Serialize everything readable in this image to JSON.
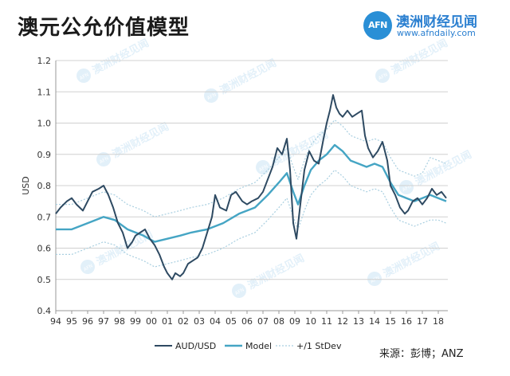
{
  "header": {
    "title": "澳元公允价值模型",
    "brand_logo": "AFN",
    "brand_name": "澳洲财经见闻",
    "brand_url": "www.afndaily.com"
  },
  "source": "来源：彭博；ANZ",
  "watermark": {
    "text": "澳洲财经见闻",
    "logo": "AFN"
  },
  "colors": {
    "aud": "#2e4a62",
    "model": "#45a5c4",
    "stdev": "#a9cfe0",
    "grid": "#d0d0d0",
    "brand": "#2a8fd6"
  },
  "chart_data": {
    "type": "line",
    "title": "澳元公允价值模型",
    "xlabel": "",
    "ylabel": "USD",
    "xlim": [
      1994,
      2018.6
    ],
    "ylim": [
      0.4,
      1.2
    ],
    "yticks": [
      "0.4",
      "0.5",
      "0.6",
      "0.7",
      "0.8",
      "0.9",
      "1.0",
      "1.1",
      "1.2"
    ],
    "xticks": [
      "94",
      "95",
      "96",
      "97",
      "98",
      "99",
      "00",
      "01",
      "02",
      "03",
      "04",
      "05",
      "06",
      "07",
      "08",
      "09",
      "10",
      "11",
      "12",
      "13",
      "14",
      "15",
      "16",
      "17",
      "18"
    ],
    "legend_position": "bottom",
    "series": [
      {
        "name": "AUD/USD",
        "x": [
          1994.0,
          1994.3,
          1994.7,
          1995.0,
          1995.3,
          1995.7,
          1996.0,
          1996.3,
          1996.7,
          1997.0,
          1997.3,
          1997.6,
          1997.9,
          1998.2,
          1998.5,
          1998.8,
          1999.0,
          1999.3,
          1999.6,
          1999.9,
          2000.2,
          2000.5,
          2000.8,
          2001.0,
          2001.3,
          2001.5,
          2001.8,
          2002.0,
          2002.3,
          2002.6,
          2002.9,
          2003.2,
          2003.5,
          2003.8,
          2004.0,
          2004.3,
          2004.7,
          2005.0,
          2005.3,
          2005.7,
          2006.0,
          2006.3,
          2006.7,
          2007.0,
          2007.3,
          2007.6,
          2007.9,
          2008.2,
          2008.5,
          2008.7,
          2008.9,
          2009.1,
          2009.3,
          2009.6,
          2009.9,
          2010.2,
          2010.5,
          2010.8,
          2011.0,
          2011.2,
          2011.4,
          2011.6,
          2011.8,
          2012.0,
          2012.3,
          2012.6,
          2012.9,
          2013.2,
          2013.4,
          2013.6,
          2013.9,
          2014.2,
          2014.5,
          2014.8,
          2015.0,
          2015.3,
          2015.6,
          2015.9,
          2016.1,
          2016.4,
          2016.7,
          2017.0,
          2017.3,
          2017.6,
          2017.9,
          2018.2,
          2018.5
        ],
        "y": [
          0.71,
          0.73,
          0.75,
          0.76,
          0.74,
          0.72,
          0.75,
          0.78,
          0.79,
          0.8,
          0.77,
          0.73,
          0.68,
          0.65,
          0.6,
          0.62,
          0.64,
          0.65,
          0.66,
          0.63,
          0.61,
          0.58,
          0.54,
          0.52,
          0.5,
          0.52,
          0.51,
          0.52,
          0.55,
          0.56,
          0.57,
          0.6,
          0.65,
          0.7,
          0.77,
          0.73,
          0.72,
          0.77,
          0.78,
          0.75,
          0.74,
          0.75,
          0.76,
          0.78,
          0.82,
          0.86,
          0.92,
          0.9,
          0.95,
          0.85,
          0.68,
          0.63,
          0.72,
          0.85,
          0.91,
          0.88,
          0.87,
          0.95,
          1.0,
          1.04,
          1.09,
          1.05,
          1.03,
          1.02,
          1.04,
          1.02,
          1.03,
          1.04,
          0.96,
          0.92,
          0.89,
          0.91,
          0.94,
          0.88,
          0.8,
          0.77,
          0.73,
          0.71,
          0.72,
          0.75,
          0.76,
          0.74,
          0.76,
          0.79,
          0.77,
          0.78,
          0.76
        ]
      },
      {
        "name": "Model",
        "x": [
          1994.0,
          1995.0,
          1996.0,
          1997.0,
          1997.7,
          1998.5,
          1999.5,
          2000.2,
          2001.0,
          2001.8,
          2002.5,
          2003.5,
          2004.5,
          2005.5,
          2006.5,
          2007.3,
          2008.0,
          2008.5,
          2008.9,
          2009.2,
          2009.6,
          2010.0,
          2010.5,
          2011.0,
          2011.5,
          2012.0,
          2012.5,
          2013.0,
          2013.5,
          2014.0,
          2014.5,
          2015.0,
          2015.5,
          2016.0,
          2016.5,
          2017.0,
          2017.5,
          2018.0,
          2018.5
        ],
        "y": [
          0.66,
          0.66,
          0.68,
          0.7,
          0.69,
          0.66,
          0.64,
          0.62,
          0.63,
          0.64,
          0.65,
          0.66,
          0.68,
          0.71,
          0.73,
          0.77,
          0.81,
          0.84,
          0.78,
          0.74,
          0.8,
          0.85,
          0.88,
          0.9,
          0.93,
          0.91,
          0.88,
          0.87,
          0.86,
          0.87,
          0.86,
          0.81,
          0.77,
          0.76,
          0.75,
          0.76,
          0.77,
          0.76,
          0.75
        ]
      },
      {
        "name": "+/1 StDev",
        "x": [
          1994.0,
          1995.0,
          1996.0,
          1997.0,
          1997.7,
          1998.5,
          1999.5,
          2000.2,
          2001.0,
          2001.8,
          2002.5,
          2003.5,
          2004.5,
          2005.5,
          2006.5,
          2007.3,
          2008.0,
          2008.5,
          2008.9,
          2009.2,
          2009.6,
          2010.0,
          2010.5,
          2011.0,
          2011.5,
          2012.0,
          2012.5,
          2013.0,
          2013.5,
          2014.0,
          2014.5,
          2015.0,
          2015.5,
          2016.0,
          2016.5,
          2017.0,
          2017.5,
          2018.0,
          2018.5
        ],
        "y": [
          0.74,
          0.74,
          0.76,
          0.78,
          0.77,
          0.74,
          0.72,
          0.7,
          0.71,
          0.72,
          0.73,
          0.74,
          0.76,
          0.79,
          0.81,
          0.85,
          0.89,
          0.92,
          0.86,
          0.82,
          0.88,
          0.93,
          0.96,
          0.98,
          1.01,
          0.99,
          0.96,
          0.95,
          0.94,
          0.95,
          0.94,
          0.89,
          0.85,
          0.84,
          0.83,
          0.84,
          0.89,
          0.88,
          0.87
        ]
      },
      {
        "name": "-1 StDev",
        "legend": false,
        "x": [
          1994.0,
          1995.0,
          1996.0,
          1997.0,
          1997.7,
          1998.5,
          1999.5,
          2000.2,
          2001.0,
          2001.8,
          2002.5,
          2003.5,
          2004.5,
          2005.5,
          2006.5,
          2007.3,
          2008.0,
          2008.5,
          2008.9,
          2009.2,
          2009.6,
          2010.0,
          2010.5,
          2011.0,
          2011.5,
          2012.0,
          2012.5,
          2013.0,
          2013.5,
          2014.0,
          2014.5,
          2015.0,
          2015.5,
          2016.0,
          2016.5,
          2017.0,
          2017.5,
          2018.0,
          2018.5
        ],
        "y": [
          0.58,
          0.58,
          0.6,
          0.62,
          0.61,
          0.58,
          0.56,
          0.54,
          0.55,
          0.56,
          0.57,
          0.58,
          0.6,
          0.63,
          0.65,
          0.69,
          0.73,
          0.76,
          0.7,
          0.66,
          0.72,
          0.77,
          0.8,
          0.82,
          0.85,
          0.83,
          0.8,
          0.79,
          0.78,
          0.79,
          0.78,
          0.73,
          0.69,
          0.68,
          0.67,
          0.68,
          0.69,
          0.69,
          0.68
        ]
      }
    ]
  }
}
